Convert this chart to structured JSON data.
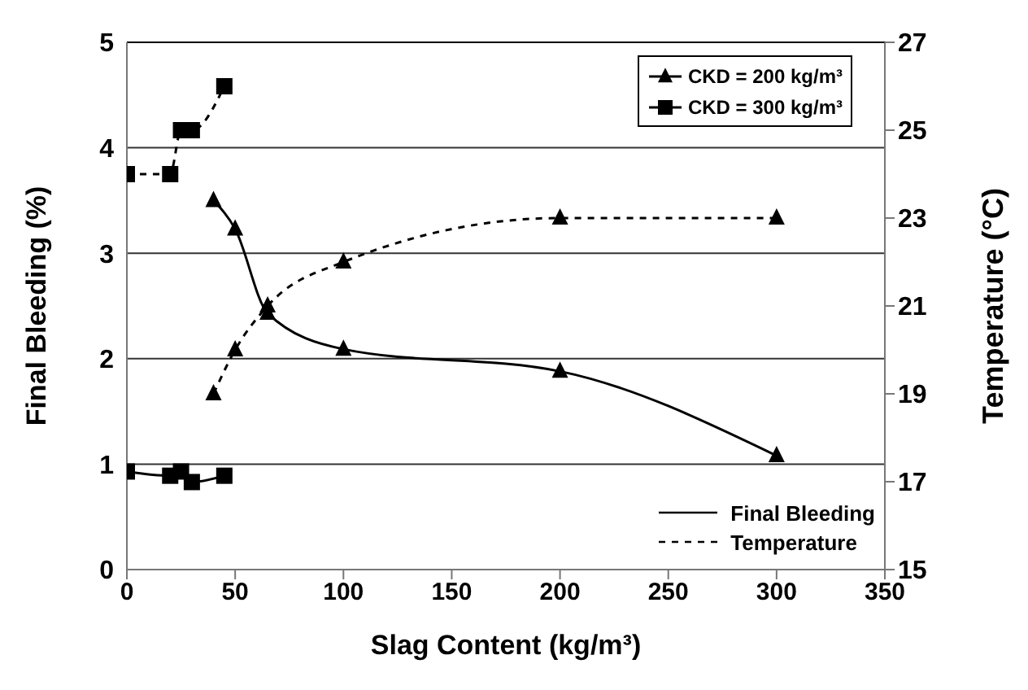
{
  "chart_data": {
    "type": "line",
    "xlabel": "Slag Content (kg/m³)",
    "ylabel": "Final Bleeding (%)",
    "y2label": "Temperature (°C)",
    "xlim": [
      0,
      350
    ],
    "xticks": [
      0,
      50,
      100,
      150,
      200,
      250,
      300,
      350
    ],
    "ylim": [
      0,
      5
    ],
    "yticks": [
      0,
      1,
      2,
      3,
      4,
      5
    ],
    "y2lim": [
      15,
      27
    ],
    "y2ticks": [
      15,
      17,
      19,
      21,
      23,
      25,
      27
    ],
    "grid": "y",
    "legend": "top right",
    "annotations": [
      "Final Bleeding",
      "Temperature"
    ],
    "series": [
      {
        "name": "CKD = 200 kg/m³",
        "color": "#000000",
        "marker": "triangle",
        "line_style": "solid",
        "x": [
          40,
          50,
          65,
          100,
          200,
          300
        ],
        "values": [
          3.5,
          3.23,
          2.43,
          2.09,
          1.88,
          1.08
        ]
      },
      {
        "name": "CKD = 300 kg/m³",
        "color": "#000000",
        "marker": "square",
        "line_style": "solid",
        "x": [
          0,
          20,
          25,
          30,
          45
        ],
        "values": [
          0.93,
          0.89,
          0.93,
          0.83,
          0.89
        ]
      },
      {
        "color": "#000000",
        "marker": "triangle",
        "line_style": "dashed",
        "axis": "y2",
        "x": [
          40,
          50,
          65,
          100,
          200,
          300
        ],
        "values": [
          19,
          20,
          21,
          22,
          23,
          23
        ]
      },
      {
        "color": "#000000",
        "marker": "square",
        "line_style": "dashed",
        "axis": "y2",
        "x": [
          0,
          20,
          25,
          30,
          45
        ],
        "values": [
          24,
          24,
          25,
          25,
          26
        ]
      }
    ]
  }
}
